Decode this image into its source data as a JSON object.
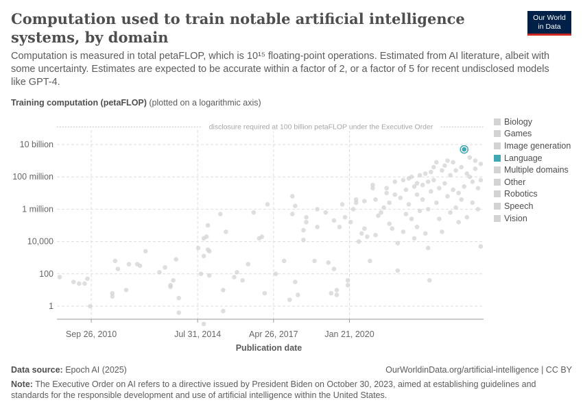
{
  "header": {
    "title": "Computation used to train notable artificial intelligence systems, by domain",
    "subtitle": "Computation is measured in total petaFLOP, which is 10¹⁵ floating-point operations. Estimated from AI literature, albeit with some uncertainty. Estimates are expected to be accurate within a factor of 2, or a factor of 5 for recent undisclosed models like GPT-4.",
    "logo_line1": "Our World",
    "logo_line2": "in Data"
  },
  "axis_caption": {
    "bold": "Training computation (petaFLOP)",
    "rest": " (plotted on a logarithmic axis)"
  },
  "footer": {
    "source_label": "Data source:",
    "source_text": " Epoch AI (2025)",
    "url": "OurWorldinData.org/artificial-intelligence | CC BY",
    "note_label": "Note:",
    "note_text": " The Executive Order on AI refers to a directive issued by President Biden on October 30, 2023, aimed at establishing guidelines and standards for the responsible development and use of artificial intelligence within the United States."
  },
  "chart_data": {
    "type": "scatter",
    "title": "Computation used to train notable artificial intelligence systems, by domain",
    "xlabel": "Publication date",
    "ylabel": "Training computation (petaFLOP)",
    "yscale": "log",
    "ylim_log10": [
      -1.7,
      7.8
    ],
    "xlim_year": [
      2009.5,
      2024.9
    ],
    "y_ticks": [
      {
        "label": "1",
        "log10": 0
      },
      {
        "label": "100",
        "log10": 2
      },
      {
        "label": "10,000",
        "log10": 4
      },
      {
        "label": "1 million",
        "log10": 6
      },
      {
        "label": "100 million",
        "log10": 8
      },
      {
        "label": "10 billion",
        "log10": 10
      }
    ],
    "x_ticks": [
      {
        "label": "Sep 26, 2010",
        "year": 2010.74
      },
      {
        "label": "Jul 31, 2014",
        "year": 2014.58
      },
      {
        "label": "Apr 26, 2017",
        "year": 2017.32
      },
      {
        "label": "Jan 21, 2020",
        "year": 2020.06
      }
    ],
    "grid": true,
    "reference_line": {
      "label": "disclosure required at 100 billion petaFLOP under the Executive Order",
      "log10": 11
    },
    "legend_position": "right",
    "legend": [
      "Biology",
      "Games",
      "Image generation",
      "Language",
      "Multiple domains",
      "Other",
      "Robotics",
      "Speech",
      "Vision"
    ],
    "highlighted_series": "Language",
    "colors": {
      "point": "#d3d3d3",
      "highlight": "#3fa6b5",
      "grid": "#dddddd",
      "tick": "#666666"
    },
    "points": [
      [
        2009.6,
        1.8
      ],
      [
        2010.1,
        1.5
      ],
      [
        2010.3,
        1.4
      ],
      [
        2010.5,
        1.4
      ],
      [
        2010.6,
        1.7
      ],
      [
        2010.7,
        0.0
      ],
      [
        2011.5,
        0.6
      ],
      [
        2011.5,
        0.8
      ],
      [
        2011.6,
        2.8
      ],
      [
        2011.7,
        2.3
      ],
      [
        2012.0,
        1.0
      ],
      [
        2012.1,
        2.6
      ],
      [
        2012.4,
        2.6
      ],
      [
        2012.5,
        2.5
      ],
      [
        2012.7,
        3.4
      ],
      [
        2013.2,
        2.1
      ],
      [
        2013.4,
        2.4
      ],
      [
        2013.6,
        1.3
      ],
      [
        2013.6,
        1.2
      ],
      [
        2013.7,
        1.6
      ],
      [
        2013.8,
        2.9
      ],
      [
        2013.9,
        0.5
      ],
      [
        2013.9,
        -0.4
      ],
      [
        2014.6,
        3.6
      ],
      [
        2014.7,
        2.0
      ],
      [
        2014.8,
        3.1
      ],
      [
        2014.8,
        -1.1
      ],
      [
        2014.8,
        4.2
      ],
      [
        2014.9,
        4.3
      ],
      [
        2014.95,
        5.0
      ],
      [
        2014.95,
        3.5
      ],
      [
        2015.0,
        3.4
      ],
      [
        2015.0,
        1.9
      ],
      [
        2015.4,
        5.7
      ],
      [
        2015.5,
        1.0
      ],
      [
        2015.5,
        -0.3
      ],
      [
        2015.6,
        4.6
      ],
      [
        2015.9,
        1.8
      ],
      [
        2016.0,
        2.1
      ],
      [
        2016.2,
        1.6
      ],
      [
        2016.4,
        2.6
      ],
      [
        2016.6,
        5.8
      ],
      [
        2016.8,
        4.2
      ],
      [
        2016.9,
        4.3
      ],
      [
        2017.0,
        0.8
      ],
      [
        2017.1,
        6.3
      ],
      [
        2017.4,
        2.0
      ],
      [
        2017.7,
        2.8
      ],
      [
        2017.9,
        0.4
      ],
      [
        2018.0,
        6.8
      ],
      [
        2018.0,
        5.7
      ],
      [
        2018.1,
        6.2
      ],
      [
        2018.1,
        1.5
      ],
      [
        2018.2,
        0.7
      ],
      [
        2018.4,
        4.7
      ],
      [
        2018.4,
        4.1
      ],
      [
        2018.5,
        5.2
      ],
      [
        2018.5,
        5.5
      ],
      [
        2018.8,
        2.8
      ],
      [
        2018.9,
        4.9
      ],
      [
        2018.9,
        6.0
      ],
      [
        2019.2,
        5.8
      ],
      [
        2019.3,
        2.7
      ],
      [
        2019.4,
        0.8
      ],
      [
        2019.5,
        2.3
      ],
      [
        2019.5,
        5.3
      ],
      [
        2019.6,
        0.7
      ],
      [
        2019.6,
        1.0
      ],
      [
        2019.7,
        4.9
      ],
      [
        2019.8,
        6.3
      ],
      [
        2019.9,
        5.5
      ],
      [
        2020.0,
        1.3
      ],
      [
        2020.0,
        1.6
      ],
      [
        2020.1,
        5.2
      ],
      [
        2020.2,
        6.0
      ],
      [
        2020.3,
        6.4
      ],
      [
        2020.3,
        6.6
      ],
      [
        2020.4,
        4.0
      ],
      [
        2020.5,
        4.5
      ],
      [
        2020.6,
        4.8
      ],
      [
        2020.6,
        6.5
      ],
      [
        2020.7,
        4.3
      ],
      [
        2020.8,
        2.8
      ],
      [
        2020.9,
        7.5
      ],
      [
        2020.9,
        7.3
      ],
      [
        2021.0,
        6.6
      ],
      [
        2021.0,
        4.4
      ],
      [
        2021.1,
        5.6
      ],
      [
        2021.2,
        5.8
      ],
      [
        2021.3,
        6.1
      ],
      [
        2021.4,
        7.0
      ],
      [
        2021.4,
        7.3
      ],
      [
        2021.5,
        6.4
      ],
      [
        2021.5,
        5.1
      ],
      [
        2021.6,
        4.8
      ],
      [
        2021.7,
        6.9
      ],
      [
        2021.7,
        7.7
      ],
      [
        2021.8,
        3.9
      ],
      [
        2021.8,
        2.2
      ],
      [
        2021.9,
        6.7
      ],
      [
        2022.0,
        7.8
      ],
      [
        2022.0,
        4.6
      ],
      [
        2022.1,
        7.2
      ],
      [
        2022.1,
        5.7
      ],
      [
        2022.2,
        6.3
      ],
      [
        2022.2,
        7.9
      ],
      [
        2022.3,
        5.4
      ],
      [
        2022.3,
        8.0
      ],
      [
        2022.4,
        7.4
      ],
      [
        2022.4,
        4.2
      ],
      [
        2022.5,
        6.9
      ],
      [
        2022.5,
        7.6
      ],
      [
        2022.5,
        4.9
      ],
      [
        2022.6,
        8.1
      ],
      [
        2022.6,
        5.9
      ],
      [
        2022.7,
        7.5
      ],
      [
        2022.7,
        6.6
      ],
      [
        2022.8,
        8.2
      ],
      [
        2022.8,
        4.5
      ],
      [
        2022.9,
        7.7
      ],
      [
        2022.9,
        6.0
      ],
      [
        2022.9,
        3.6
      ],
      [
        2022.95,
        1.6
      ],
      [
        2023.0,
        8.3
      ],
      [
        2023.0,
        7.1
      ],
      [
        2023.1,
        8.6
      ],
      [
        2023.1,
        7.8
      ],
      [
        2023.2,
        6.4
      ],
      [
        2023.2,
        8.9
      ],
      [
        2023.3,
        7.3
      ],
      [
        2023.3,
        5.4
      ],
      [
        2023.4,
        8.4
      ],
      [
        2023.4,
        4.6
      ],
      [
        2023.5,
        8.7
      ],
      [
        2023.5,
        7.6
      ],
      [
        2023.6,
        6.8
      ],
      [
        2023.6,
        9.0
      ],
      [
        2023.7,
        8.1
      ],
      [
        2023.7,
        5.8
      ],
      [
        2023.8,
        8.9
      ],
      [
        2023.8,
        7.2
      ],
      [
        2023.9,
        6.1
      ],
      [
        2023.9,
        8.4
      ],
      [
        2024.0,
        7.0
      ],
      [
        2024.0,
        5.2
      ],
      [
        2024.1,
        8.6
      ],
      [
        2024.1,
        6.6
      ],
      [
        2024.2,
        7.4
      ],
      [
        2024.3,
        8.2
      ],
      [
        2024.3,
        5.5
      ],
      [
        2024.4,
        9.2
      ],
      [
        2024.4,
        8.0
      ],
      [
        2024.5,
        7.7
      ],
      [
        2024.5,
        6.4
      ],
      [
        2024.6,
        8.5
      ],
      [
        2024.6,
        9.0
      ],
      [
        2024.7,
        7.3
      ],
      [
        2024.7,
        6.0
      ],
      [
        2024.8,
        8.8
      ],
      [
        2024.8,
        7.8
      ],
      [
        2024.8,
        3.7
      ]
    ],
    "highlighted_points": [
      [
        2024.2,
        9.7
      ]
    ]
  }
}
